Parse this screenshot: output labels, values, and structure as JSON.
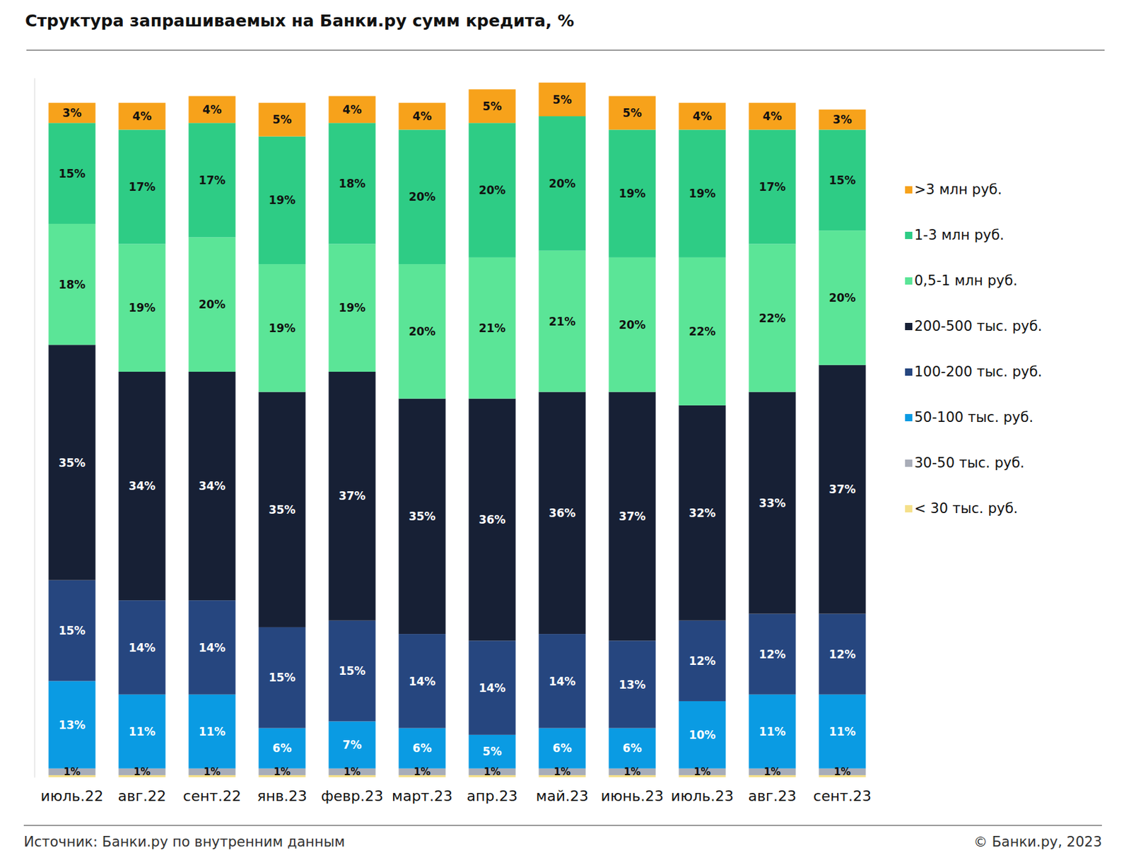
{
  "chart_data": {
    "type": "bar",
    "title": "Структура запрашиваемых на Банки.ру сумм кредита, %",
    "annotations": [
      "Источник: Банки.ру по внутренним данным",
      "© Банки.ру, 2023"
    ],
    "stacked": true,
    "data_labels": true,
    "tick_labels": "x",
    "legend": "right",
    "grid": false,
    "ylim": [
      0,
      104
    ],
    "yticks": [],
    "categories": [
      "июль.22",
      "авг.22",
      "сент.22",
      "янв.23",
      "февр.23",
      "март.23",
      "апр.23",
      "май.23",
      "июнь.23",
      "июль.23",
      "авг.23",
      "сент.23"
    ],
    "series": [
      {
        "name": ">3 млн руб.",
        "color": "#f7a21b",
        "values": [
          3,
          4,
          4,
          5,
          4,
          4,
          5,
          5,
          5,
          4,
          4,
          3
        ],
        "value_labels": [
          "3%",
          "4%",
          "4%",
          "5%",
          "4%",
          "4%",
          "5%",
          "5%",
          "5%",
          "4%",
          "4%",
          "3%"
        ]
      },
      {
        "name": "1-3 млн руб.",
        "color": "#2ecc85",
        "values": [
          15,
          17,
          17,
          19,
          18,
          20,
          20,
          20,
          19,
          19,
          17,
          15
        ],
        "value_labels": [
          "15%",
          "17%",
          "17%",
          "19%",
          "18%",
          "20%",
          "20%",
          "20%",
          "19%",
          "19%",
          "17%",
          "15%"
        ]
      },
      {
        "name": "0,5-1 млн руб.",
        "color": "#5be597",
        "values": [
          18,
          19,
          20,
          19,
          19,
          20,
          21,
          21,
          20,
          22,
          22,
          20
        ],
        "value_labels": [
          "18%",
          "19%",
          "20%",
          "19%",
          "19%",
          "20%",
          "21%",
          "21%",
          "20%",
          "22%",
          "22%",
          "20%"
        ]
      },
      {
        "name": "200-500 тыс. руб.",
        "color": "#172035",
        "values": [
          35,
          34,
          34,
          35,
          37,
          35,
          36,
          36,
          37,
          32,
          33,
          37
        ],
        "value_labels": [
          "35%",
          "34%",
          "34%",
          "35%",
          "37%",
          "35%",
          "36%",
          "36%",
          "37%",
          "32%",
          "33%",
          "37%"
        ]
      },
      {
        "name": "100-200 тыс. руб.",
        "color": "#26467f",
        "values": [
          15,
          14,
          14,
          15,
          15,
          14,
          14,
          14,
          13,
          12,
          12,
          12
        ],
        "value_labels": [
          "15%",
          "14%",
          "14%",
          "15%",
          "15%",
          "14%",
          "14%",
          "14%",
          "13%",
          "12%",
          "12%",
          "12%"
        ]
      },
      {
        "name": "50-100 тыс. руб.",
        "color": "#0a9be3",
        "values": [
          13,
          11,
          11,
          6,
          7,
          6,
          5,
          6,
          6,
          10,
          11,
          11
        ],
        "value_labels": [
          "13%",
          "11%",
          "11%",
          "6%",
          "7%",
          "6%",
          "5%",
          "6%",
          "6%",
          "10%",
          "11%",
          "11%"
        ]
      },
      {
        "name": "30-50 тыс. руб.",
        "color": "#a9adb8",
        "values": [
          1,
          1,
          1,
          1,
          1,
          1,
          1,
          1,
          1,
          1,
          1,
          1
        ],
        "value_labels": [
          "1%",
          "1%",
          "1%",
          "1%",
          "1%",
          "1%",
          "1%",
          "1%",
          "1%",
          "1%",
          "1%",
          "1%"
        ]
      },
      {
        "name": "< 30 тыс. руб.",
        "color": "#f5e08a",
        "values": [
          0.3,
          0.3,
          0.3,
          0.3,
          0.3,
          0.3,
          0.3,
          0.3,
          0.3,
          0.3,
          0.3,
          0.3
        ],
        "value_labels": [
          null,
          null,
          null,
          null,
          null,
          null,
          null,
          null,
          null,
          null,
          null,
          null
        ]
      }
    ]
  }
}
